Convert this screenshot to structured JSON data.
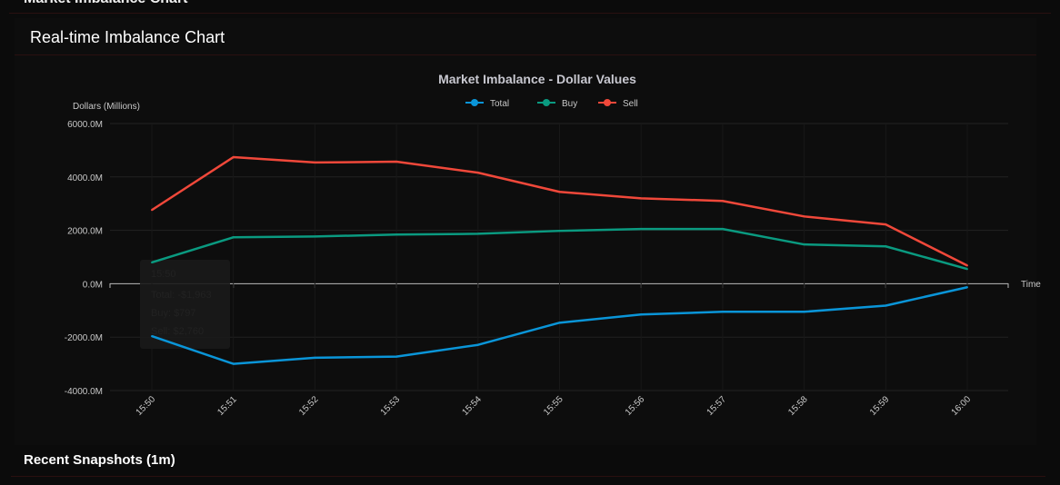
{
  "page": {
    "section_title": "Market Imbalance Chart",
    "card_title": "Real-time Imbalance Chart",
    "snapshots_title": "Recent Snapshots (1m)"
  },
  "tooltip": {
    "title": "15:50",
    "lines": [
      "Total: -$1,963",
      "Buy: $797",
      "Sell: $2,760"
    ]
  },
  "chart_data": {
    "type": "line",
    "title": "Market Imbalance - Dollar Values",
    "xlabel": "Time",
    "ylabel": "Dollars (Millions)",
    "ylim": [
      -4000,
      6000
    ],
    "yticks": [
      "6000.0M",
      "4000.0M",
      "2000.0M",
      "0.0M",
      "-2000.0M",
      "-4000.0M"
    ],
    "ytick_values": [
      6000,
      4000,
      2000,
      0,
      -2000,
      -4000
    ],
    "categories": [
      "15:50",
      "15:51",
      "15:52",
      "15:53",
      "15:54",
      "15:55",
      "15:56",
      "15:57",
      "15:58",
      "15:59",
      "16:00"
    ],
    "legend": "top",
    "grid": true,
    "series": [
      {
        "name": "Total",
        "color": "#0a95d8",
        "values": [
          -1963,
          -3000,
          -2770,
          -2730,
          -2290,
          -1460,
          -1150,
          -1050,
          -1050,
          -820,
          -130
        ]
      },
      {
        "name": "Buy",
        "color": "#0a9a80",
        "values": [
          797,
          1740,
          1770,
          1840,
          1870,
          1980,
          2050,
          2050,
          1470,
          1400,
          550
        ]
      },
      {
        "name": "Sell",
        "color": "#f0483a",
        "values": [
          2760,
          4740,
          4540,
          4570,
          4160,
          3440,
          3200,
          3100,
          2520,
          2220,
          680
        ]
      }
    ]
  }
}
